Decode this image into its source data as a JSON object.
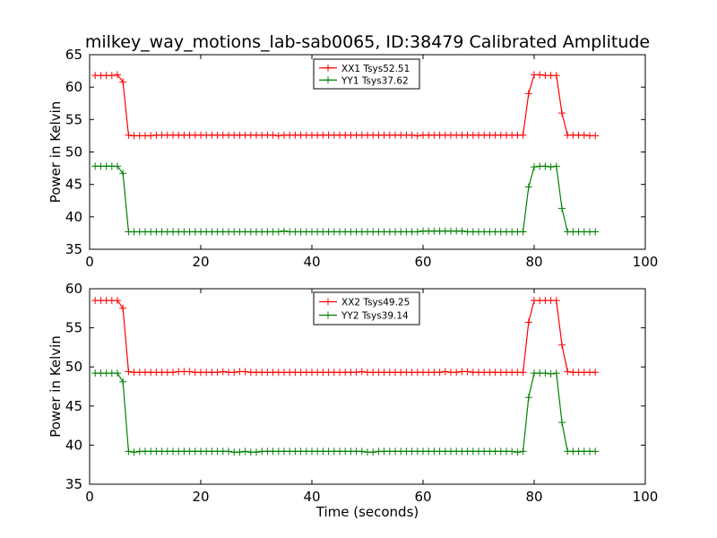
{
  "figure": {
    "title": "milkey_way_motions_lab-sab0065, ID:38479 Calibrated Amplitude"
  },
  "chart_data": [
    {
      "type": "line",
      "title": "milkey_way_motions_lab-sab0065, ID:38479 Calibrated Amplitude",
      "xlabel": "",
      "ylabel": "Power in Kelvin",
      "xlim": [
        0,
        100
      ],
      "ylim": [
        35,
        65
      ],
      "xticks": [
        0,
        20,
        40,
        60,
        80,
        100
      ],
      "yticks": [
        35,
        40,
        45,
        50,
        55,
        60,
        65
      ],
      "grid": false,
      "legend_position": "top-center",
      "x": [
        1,
        2,
        3,
        4,
        5,
        6,
        7,
        8,
        9,
        10,
        11,
        12,
        13,
        14,
        15,
        16,
        17,
        18,
        19,
        20,
        21,
        22,
        23,
        24,
        25,
        26,
        27,
        28,
        29,
        30,
        31,
        32,
        33,
        34,
        35,
        36,
        37,
        38,
        39,
        40,
        41,
        42,
        43,
        44,
        45,
        46,
        47,
        48,
        49,
        50,
        51,
        52,
        53,
        54,
        55,
        56,
        57,
        58,
        59,
        60,
        61,
        62,
        63,
        64,
        65,
        66,
        67,
        68,
        69,
        70,
        71,
        72,
        73,
        74,
        75,
        76,
        77,
        78,
        79,
        80,
        81,
        82,
        83,
        84,
        85,
        86,
        87,
        88,
        89,
        90,
        91
      ],
      "series": [
        {
          "name": "XX1 Tsys52.51",
          "color": "#ff0000",
          "values": [
            61.8,
            61.8,
            61.8,
            61.8,
            61.9,
            60.8,
            52.6,
            52.5,
            52.5,
            52.5,
            52.5,
            52.6,
            52.6,
            52.6,
            52.6,
            52.6,
            52.6,
            52.6,
            52.6,
            52.6,
            52.6,
            52.6,
            52.6,
            52.6,
            52.6,
            52.6,
            52.6,
            52.6,
            52.6,
            52.6,
            52.6,
            52.6,
            52.6,
            52.5,
            52.6,
            52.6,
            52.6,
            52.6,
            52.6,
            52.6,
            52.6,
            52.6,
            52.6,
            52.6,
            52.6,
            52.6,
            52.6,
            52.6,
            52.6,
            52.6,
            52.6,
            52.6,
            52.6,
            52.6,
            52.6,
            52.6,
            52.6,
            52.6,
            52.5,
            52.6,
            52.6,
            52.6,
            52.6,
            52.6,
            52.6,
            52.6,
            52.6,
            52.6,
            52.6,
            52.6,
            52.6,
            52.6,
            52.6,
            52.6,
            52.6,
            52.6,
            52.6,
            52.6,
            59.0,
            61.9,
            61.9,
            61.8,
            61.8,
            61.8,
            56.0,
            52.6,
            52.6,
            52.6,
            52.6,
            52.5,
            52.5
          ]
        },
        {
          "name": "YY1 Tsys37.62",
          "color": "#008000",
          "values": [
            47.8,
            47.8,
            47.8,
            47.8,
            47.8,
            46.7,
            37.7,
            37.7,
            37.7,
            37.7,
            37.7,
            37.7,
            37.7,
            37.7,
            37.7,
            37.7,
            37.7,
            37.7,
            37.7,
            37.7,
            37.7,
            37.7,
            37.7,
            37.7,
            37.7,
            37.7,
            37.7,
            37.7,
            37.7,
            37.7,
            37.7,
            37.7,
            37.7,
            37.7,
            37.8,
            37.7,
            37.7,
            37.7,
            37.7,
            37.7,
            37.7,
            37.7,
            37.7,
            37.7,
            37.7,
            37.7,
            37.7,
            37.7,
            37.7,
            37.7,
            37.7,
            37.7,
            37.7,
            37.7,
            37.7,
            37.7,
            37.7,
            37.7,
            37.7,
            37.8,
            37.8,
            37.8,
            37.8,
            37.8,
            37.8,
            37.8,
            37.8,
            37.7,
            37.7,
            37.7,
            37.7,
            37.7,
            37.7,
            37.7,
            37.7,
            37.7,
            37.7,
            37.7,
            44.6,
            47.7,
            47.8,
            47.8,
            47.7,
            47.8,
            41.3,
            37.7,
            37.7,
            37.7,
            37.7,
            37.7,
            37.7
          ]
        }
      ]
    },
    {
      "type": "line",
      "title": "",
      "xlabel": "Time (seconds)",
      "ylabel": "Power in Kelvin",
      "xlim": [
        0,
        100
      ],
      "ylim": [
        35,
        60
      ],
      "xticks": [
        0,
        20,
        40,
        60,
        80,
        100
      ],
      "yticks": [
        35,
        40,
        45,
        50,
        55,
        60
      ],
      "grid": false,
      "legend_position": "top-center",
      "x": [
        1,
        2,
        3,
        4,
        5,
        6,
        7,
        8,
        9,
        10,
        11,
        12,
        13,
        14,
        15,
        16,
        17,
        18,
        19,
        20,
        21,
        22,
        23,
        24,
        25,
        26,
        27,
        28,
        29,
        30,
        31,
        32,
        33,
        34,
        35,
        36,
        37,
        38,
        39,
        40,
        41,
        42,
        43,
        44,
        45,
        46,
        47,
        48,
        49,
        50,
        51,
        52,
        53,
        54,
        55,
        56,
        57,
        58,
        59,
        60,
        61,
        62,
        63,
        64,
        65,
        66,
        67,
        68,
        69,
        70,
        71,
        72,
        73,
        74,
        75,
        76,
        77,
        78,
        79,
        80,
        81,
        82,
        83,
        84,
        85,
        86,
        87,
        88,
        89,
        90,
        91
      ],
      "series": [
        {
          "name": "XX2 Tsys49.25",
          "color": "#ff0000",
          "values": [
            58.5,
            58.5,
            58.5,
            58.5,
            58.5,
            57.5,
            49.4,
            49.3,
            49.3,
            49.3,
            49.3,
            49.3,
            49.3,
            49.3,
            49.3,
            49.4,
            49.4,
            49.4,
            49.3,
            49.3,
            49.3,
            49.3,
            49.3,
            49.4,
            49.3,
            49.3,
            49.4,
            49.4,
            49.3,
            49.3,
            49.3,
            49.3,
            49.3,
            49.3,
            49.3,
            49.3,
            49.3,
            49.3,
            49.3,
            49.3,
            49.3,
            49.3,
            49.3,
            49.3,
            49.3,
            49.3,
            49.3,
            49.3,
            49.4,
            49.3,
            49.3,
            49.3,
            49.3,
            49.3,
            49.3,
            49.3,
            49.3,
            49.3,
            49.3,
            49.3,
            49.3,
            49.3,
            49.3,
            49.4,
            49.3,
            49.3,
            49.4,
            49.4,
            49.3,
            49.3,
            49.3,
            49.3,
            49.3,
            49.3,
            49.3,
            49.3,
            49.3,
            49.3,
            55.7,
            58.5,
            58.5,
            58.5,
            58.5,
            58.5,
            52.8,
            49.4,
            49.3,
            49.3,
            49.3,
            49.3,
            49.3
          ]
        },
        {
          "name": "YY2 Tsys39.14",
          "color": "#008000",
          "values": [
            49.2,
            49.2,
            49.2,
            49.2,
            49.2,
            48.1,
            39.2,
            39.1,
            39.2,
            39.2,
            39.2,
            39.2,
            39.2,
            39.2,
            39.2,
            39.2,
            39.2,
            39.2,
            39.2,
            39.2,
            39.2,
            39.2,
            39.2,
            39.2,
            39.2,
            39.1,
            39.1,
            39.2,
            39.1,
            39.1,
            39.2,
            39.2,
            39.2,
            39.2,
            39.2,
            39.2,
            39.2,
            39.2,
            39.2,
            39.2,
            39.2,
            39.2,
            39.2,
            39.2,
            39.2,
            39.2,
            39.2,
            39.2,
            39.2,
            39.1,
            39.1,
            39.2,
            39.2,
            39.2,
            39.2,
            39.2,
            39.2,
            39.2,
            39.2,
            39.2,
            39.2,
            39.2,
            39.2,
            39.2,
            39.2,
            39.2,
            39.2,
            39.2,
            39.2,
            39.2,
            39.2,
            39.2,
            39.2,
            39.2,
            39.2,
            39.2,
            39.1,
            39.2,
            46.1,
            49.2,
            49.2,
            49.2,
            49.1,
            49.2,
            42.9,
            39.2,
            39.2,
            39.2,
            39.2,
            39.2,
            39.2
          ]
        }
      ]
    }
  ]
}
